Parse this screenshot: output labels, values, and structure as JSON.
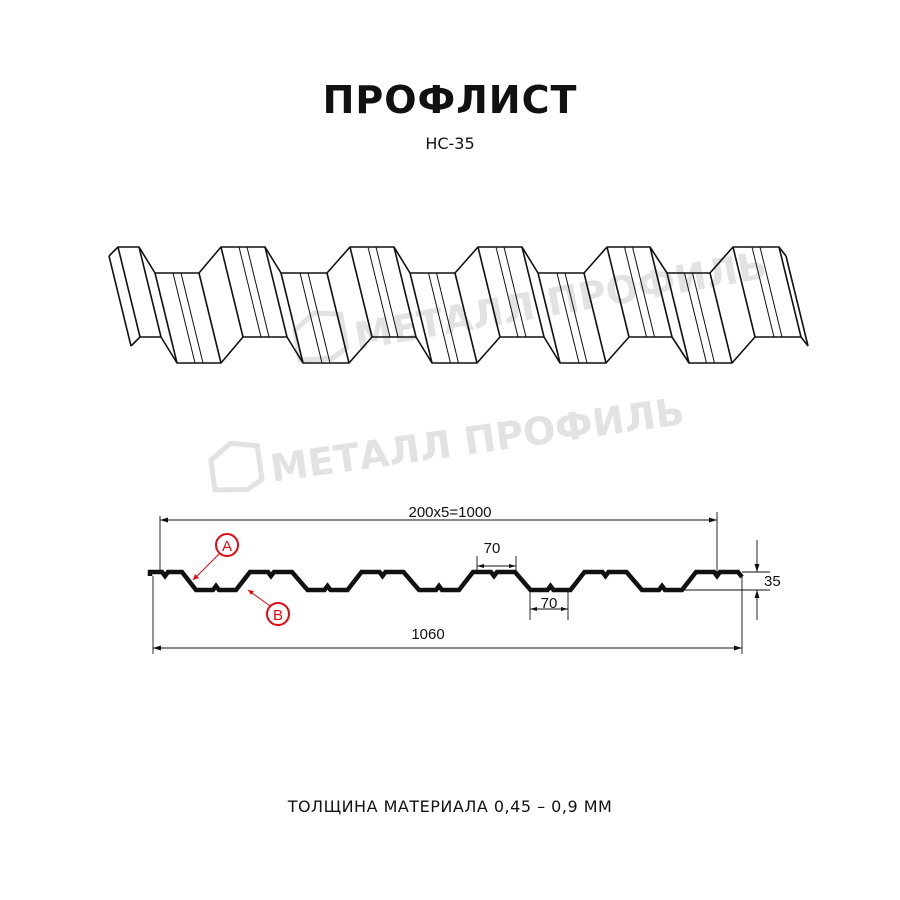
{
  "header": {
    "title": "ПРОФЛИСТ",
    "subtitle": "НС-35"
  },
  "watermark": {
    "text": "МЕТАЛЛ ПРОФИЛЬ"
  },
  "drawing": {
    "dimension_pitch": "200x5=1000",
    "dimension_width": "1060",
    "dimension_top_flat": "70",
    "dimension_bottom_flat": "70",
    "dimension_height": "35",
    "marker_a": "A",
    "marker_b": "B",
    "marker_color": "#e30613"
  },
  "footer": {
    "thickness": "ТОЛЩИНА МАТЕРИАЛА 0,45 – 0,9 ММ"
  }
}
